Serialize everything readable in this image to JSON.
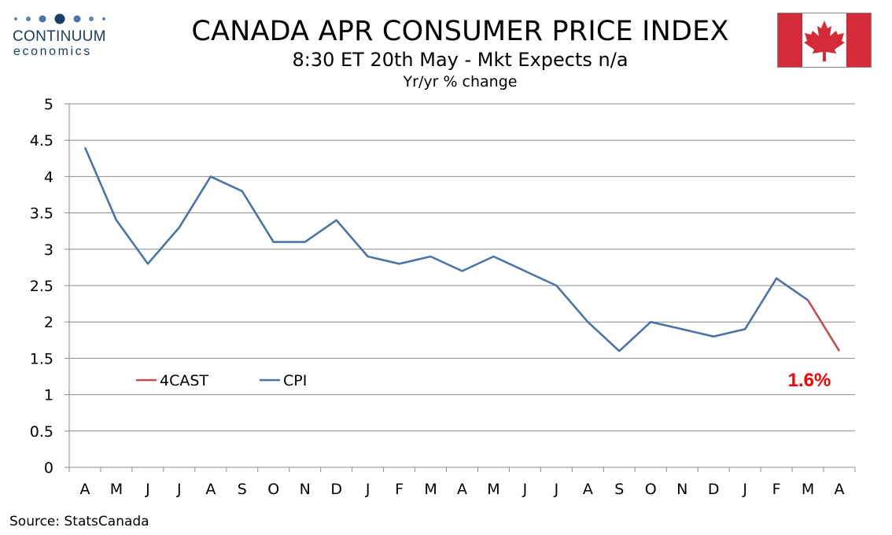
{
  "header": {
    "brand_name": "CONTINUUM",
    "brand_sub": "economics",
    "title": "CANADA APR CONSUMER PRICE INDEX",
    "subtitle": "8:30 ET 20th May - Mkt Expects n/a",
    "unit_label": "Yr/yr % change"
  },
  "footer": {
    "source": "Source: StatsCanada"
  },
  "colors": {
    "cpi": "#4a74a8",
    "forecast": "#c0504d",
    "callout": "#ff0000",
    "flag_red": "#d52b38",
    "brand": "#1a3f66"
  },
  "icons": [
    "canada-flag-icon",
    "continuum-logo-icon"
  ],
  "chart_data": {
    "type": "line",
    "categories": [
      "A",
      "M",
      "J",
      "J",
      "A",
      "S",
      "O",
      "N",
      "D",
      "J",
      "F",
      "M",
      "A",
      "M",
      "J",
      "J",
      "A",
      "S",
      "O",
      "N",
      "D",
      "J",
      "F",
      "M",
      "A"
    ],
    "series": [
      {
        "name": "CPI",
        "values": [
          4.4,
          3.4,
          2.8,
          3.3,
          4.0,
          3.8,
          3.1,
          3.1,
          3.4,
          2.9,
          2.8,
          2.9,
          2.7,
          2.9,
          2.7,
          2.5,
          2.0,
          1.6,
          2.0,
          1.9,
          1.8,
          1.9,
          2.6,
          2.3,
          null
        ]
      },
      {
        "name": "4CAST",
        "values": [
          null,
          null,
          null,
          null,
          null,
          null,
          null,
          null,
          null,
          null,
          null,
          null,
          null,
          null,
          null,
          null,
          null,
          null,
          null,
          null,
          null,
          null,
          null,
          2.3,
          1.6
        ]
      }
    ],
    "ylim": [
      0,
      5
    ],
    "yticks": [
      0,
      0.5,
      1,
      1.5,
      2,
      2.5,
      3,
      3.5,
      4,
      4.5,
      5
    ],
    "grid": true,
    "legend": {
      "placement": "bottom-left",
      "entries": [
        "4CAST",
        "CPI"
      ]
    },
    "annotations": [
      {
        "text": "1.6%",
        "category_index": 24
      }
    ]
  }
}
